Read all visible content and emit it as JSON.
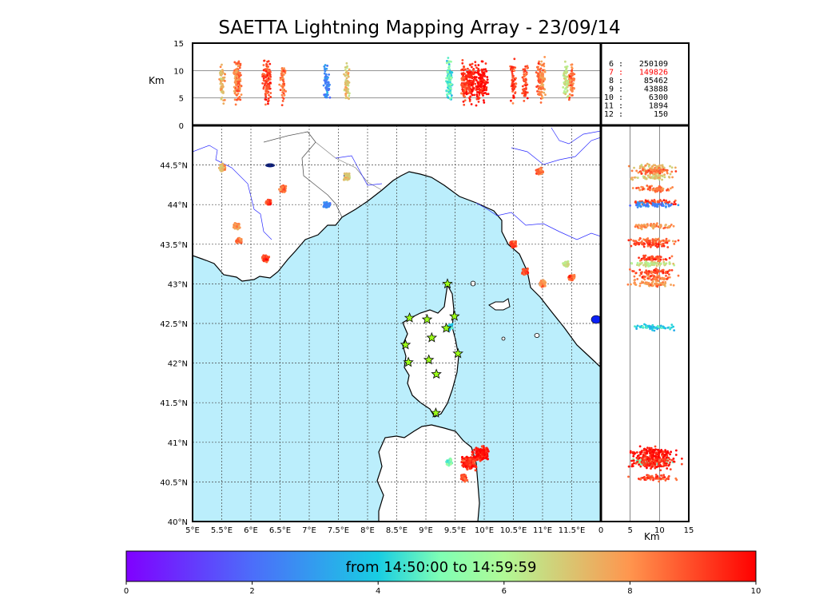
{
  "chart_data": {
    "type": "scatter",
    "title": "SAETTA Lightning Mapping Array - 23/09/14",
    "map": {
      "lon_range": [
        5,
        12
      ],
      "lat_range": [
        40,
        45
      ],
      "lon_ticks": [
        "5°E",
        "5.5°E",
        "6°E",
        "6.5°E",
        "7°E",
        "7.5°E",
        "8°E",
        "8.5°E",
        "9°E",
        "9.5°E",
        "10°E",
        "10.5°E",
        "11°E",
        "11.5°E"
      ],
      "lat_ticks": [
        "40°N",
        "40.5°N",
        "41°N",
        "41.5°N",
        "42°N",
        "42.5°N",
        "43°N",
        "43.5°N",
        "44°N",
        "44.5°N"
      ],
      "grid": "dotted",
      "sea_color": "#bbeefc",
      "stations": [
        {
          "lon": 9.37,
          "lat": 43.0
        },
        {
          "lon": 8.72,
          "lat": 42.57
        },
        {
          "lon": 9.02,
          "lat": 42.55
        },
        {
          "lon": 9.49,
          "lat": 42.59
        },
        {
          "lon": 9.35,
          "lat": 42.44
        },
        {
          "lon": 9.1,
          "lat": 42.32
        },
        {
          "lon": 8.65,
          "lat": 42.23
        },
        {
          "lon": 9.55,
          "lat": 42.12
        },
        {
          "lon": 9.05,
          "lat": 42.04
        },
        {
          "lon": 8.7,
          "lat": 42.01
        },
        {
          "lon": 9.18,
          "lat": 41.86
        },
        {
          "lon": 9.17,
          "lat": 41.37
        }
      ],
      "clusters": [
        {
          "lon": 5.5,
          "lat": 44.47,
          "t": 7.5
        },
        {
          "lon": 6.55,
          "lat": 44.2,
          "t": 8.5
        },
        {
          "lon": 6.3,
          "lat": 44.03,
          "t": 9.0
        },
        {
          "lon": 5.75,
          "lat": 43.73,
          "t": 8.0
        },
        {
          "lon": 5.8,
          "lat": 43.55,
          "t": 8.5
        },
        {
          "lon": 6.25,
          "lat": 43.32,
          "t": 9.0
        },
        {
          "lon": 7.65,
          "lat": 44.35,
          "t": 7.0
        },
        {
          "lon": 7.3,
          "lat": 44.0,
          "t": 2.5
        },
        {
          "lon": 10.95,
          "lat": 44.42,
          "t": 8.5
        },
        {
          "lon": 10.5,
          "lat": 43.5,
          "t": 9.0
        },
        {
          "lon": 10.7,
          "lat": 43.15,
          "t": 9.0
        },
        {
          "lon": 11.5,
          "lat": 43.08,
          "t": 8.5
        },
        {
          "lon": 11.4,
          "lat": 43.25,
          "t": 6.5
        },
        {
          "lon": 11.0,
          "lat": 43.0,
          "t": 8.0
        },
        {
          "lon": 9.4,
          "lat": 42.45,
          "t": 4.0
        },
        {
          "lon": 9.4,
          "lat": 40.75,
          "t": 5.0
        },
        {
          "lon": 9.75,
          "lat": 40.75,
          "t": 9.5
        },
        {
          "lon": 9.95,
          "lat": 40.85,
          "t": 9.8
        },
        {
          "lon": 9.65,
          "lat": 40.55,
          "t": 9.0
        }
      ]
    },
    "lon_alt": {
      "ylabel": "Km",
      "y_ticks": [
        "0",
        "5",
        "10",
        "15"
      ],
      "ylim": [
        0,
        15
      ],
      "horizontal_lines": [
        5,
        10
      ]
    },
    "lat_alt": {
      "xlabel": "Km",
      "x_ticks": [
        "0",
        "5",
        "10",
        "15"
      ],
      "xlim": [
        0,
        15
      ],
      "vertical_lines": [
        5,
        10
      ]
    },
    "histogram_counts": [
      {
        "label": "6  :",
        "value": "250109",
        "color": "#000000"
      },
      {
        "label": "7  :",
        "value": "149826",
        "color": "#ff0000"
      },
      {
        "label": "8  :",
        "value": "85462",
        "color": "#000000"
      },
      {
        "label": "9  :",
        "value": "43888",
        "color": "#000000"
      },
      {
        "label": "10 :",
        "value": "6300",
        "color": "#000000"
      },
      {
        "label": "11 :",
        "value": "1894",
        "color": "#000000"
      },
      {
        "label": "12 :",
        "value": "150",
        "color": "#000000"
      }
    ],
    "colorbar": {
      "label": "from 14:50:00 to 14:59:59",
      "ticks": [
        "0",
        "2",
        "4",
        "6",
        "8",
        "10"
      ],
      "range": [
        0,
        10
      ],
      "colormap": "rainbow"
    }
  }
}
